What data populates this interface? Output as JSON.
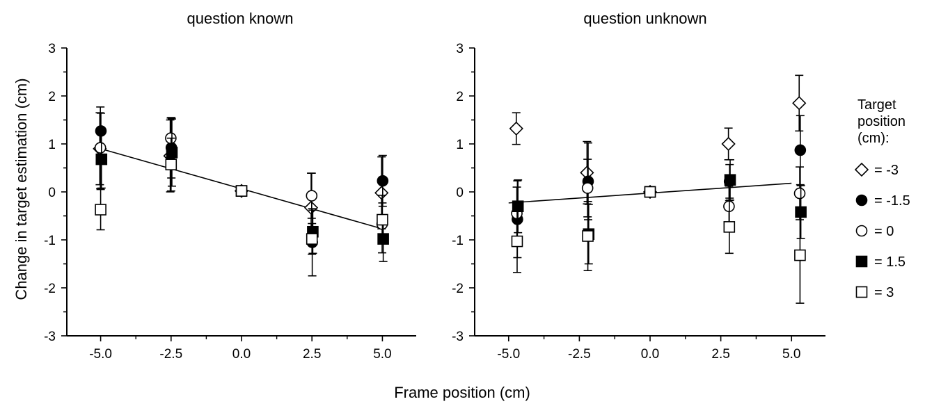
{
  "figure": {
    "ylabel": "Change in target estimation (cm)",
    "xlabel": "Frame position (cm)"
  },
  "legend": {
    "title_lines": [
      "Target",
      "position",
      "(cm):"
    ],
    "entries": [
      {
        "label": "= -3",
        "marker": "diamond",
        "fill": "#ffffff"
      },
      {
        "label": "= -1.5",
        "marker": "circle",
        "fill": "#000000"
      },
      {
        "label": "= 0",
        "marker": "circle",
        "fill": "#ffffff"
      },
      {
        "label": "= 1.5",
        "marker": "square",
        "fill": "#000000"
      },
      {
        "label": "= 3",
        "marker": "square",
        "fill": "#ffffff"
      }
    ]
  },
  "chart_data": [
    {
      "type": "scatter",
      "title": "question known",
      "xlim": [
        -6.2,
        6.2
      ],
      "ylim": [
        -3,
        3
      ],
      "xticks": [
        "-5.0",
        "-2.5",
        "0.0",
        "2.5",
        "5.0"
      ],
      "yticks": [
        "-3",
        "-2",
        "-1",
        "0",
        "1",
        "2",
        "3"
      ],
      "fit_line": {
        "x": [
          -5.0,
          5.0
        ],
        "y": [
          0.9,
          -0.77
        ]
      },
      "series": [
        {
          "target": "= -3",
          "marker": "diamond",
          "fill": "#ffffff",
          "points": [
            [
              -5.0,
              0.9,
              0.75
            ],
            [
              -2.5,
              0.75,
              0.75
            ],
            [
              0.0,
              0.02,
              0.08
            ],
            [
              2.5,
              -0.33,
              0.72
            ],
            [
              5.0,
              -0.02,
              0.75
            ]
          ]
        },
        {
          "target": "= -1.5",
          "marker": "circle",
          "fill": "#000000",
          "points": [
            [
              -5.0,
              1.27,
              0.37
            ],
            [
              -2.5,
              0.92,
              0.63
            ],
            [
              0.0,
              0.02,
              0.05
            ],
            [
              2.5,
              -1.05,
              0.7
            ],
            [
              5.0,
              0.23,
              0.53
            ]
          ]
        },
        {
          "target": "= 0",
          "marker": "circle",
          "fill": "#ffffff",
          "points": [
            [
              -5.0,
              0.92,
              0.85
            ],
            [
              -2.5,
              1.12,
              0.42
            ],
            [
              0.0,
              0.02,
              0.05
            ],
            [
              2.5,
              -0.08,
              0.47
            ],
            [
              5.0,
              -0.67,
              0.6
            ]
          ]
        },
        {
          "target": "= 1.5",
          "marker": "square",
          "fill": "#000000",
          "points": [
            [
              -5.0,
              0.68,
              0.6
            ],
            [
              -2.5,
              0.82,
              0.7
            ],
            [
              0.0,
              0.02,
              0.05
            ],
            [
              2.5,
              -0.83,
              0.45
            ],
            [
              5.0,
              -0.98,
              0.47
            ]
          ]
        },
        {
          "target": "= 3",
          "marker": "square",
          "fill": "#ffffff",
          "points": [
            [
              -5.0,
              -0.37,
              0.42
            ],
            [
              -2.5,
              0.57,
              0.55
            ],
            [
              0.0,
              0.02,
              0.05
            ],
            [
              2.5,
              -0.98,
              0.32
            ],
            [
              5.0,
              -0.58,
              0.35
            ]
          ]
        }
      ]
    },
    {
      "type": "scatter",
      "title": "question unknown",
      "xlim": [
        -6.2,
        6.2
      ],
      "ylim": [
        -3,
        3
      ],
      "xticks": [
        "-5.0",
        "-2.5",
        "0.0",
        "2.5",
        "5.0"
      ],
      "yticks": [
        "-3",
        "-2",
        "-1",
        "0",
        "1",
        "2",
        "3"
      ],
      "fit_line": {
        "x": [
          -5.0,
          5.0
        ],
        "y": [
          -0.23,
          0.18
        ]
      },
      "series": [
        {
          "target": "= -3",
          "marker": "diamond",
          "fill": "#ffffff",
          "points": [
            [
              -5.0,
              1.32,
              0.33
            ],
            [
              -2.5,
              0.4,
              0.65
            ],
            [
              0.0,
              0.0,
              0.08
            ],
            [
              2.5,
              1.0,
              0.33
            ],
            [
              5.0,
              1.85,
              0.58
            ]
          ]
        },
        {
          "target": "= -1.5",
          "marker": "circle",
          "fill": "#000000",
          "points": [
            [
              -5.0,
              -0.57,
              0.8
            ],
            [
              -2.5,
              0.22,
              0.8
            ],
            [
              0.0,
              0.0,
              0.06
            ],
            [
              2.5,
              0.22,
              0.35
            ],
            [
              5.0,
              0.87,
              0.72
            ]
          ]
        },
        {
          "target": "= 0",
          "marker": "circle",
          "fill": "#ffffff",
          "points": [
            [
              -5.0,
              -0.45,
              0.55
            ],
            [
              -2.5,
              0.08,
              0.6
            ],
            [
              0.0,
              0.0,
              0.06
            ],
            [
              2.5,
              -0.3,
              0.42
            ],
            [
              5.0,
              -0.03,
              0.55
            ]
          ]
        },
        {
          "target": "= 1.5",
          "marker": "square",
          "fill": "#000000",
          "points": [
            [
              -5.0,
              -0.3,
              0.55
            ],
            [
              -2.5,
              -0.88,
              0.62
            ],
            [
              0.0,
              0.0,
              0.06
            ],
            [
              2.5,
              0.25,
              0.42
            ],
            [
              5.0,
              -0.42,
              0.55
            ]
          ]
        },
        {
          "target": "= 3",
          "marker": "square",
          "fill": "#ffffff",
          "points": [
            [
              -5.0,
              -1.03,
              0.65
            ],
            [
              -2.5,
              -0.92,
              0.72
            ],
            [
              0.0,
              0.0,
              0.06
            ],
            [
              2.5,
              -0.73,
              0.55
            ],
            [
              5.0,
              -1.32,
              1.0
            ]
          ]
        }
      ]
    }
  ]
}
